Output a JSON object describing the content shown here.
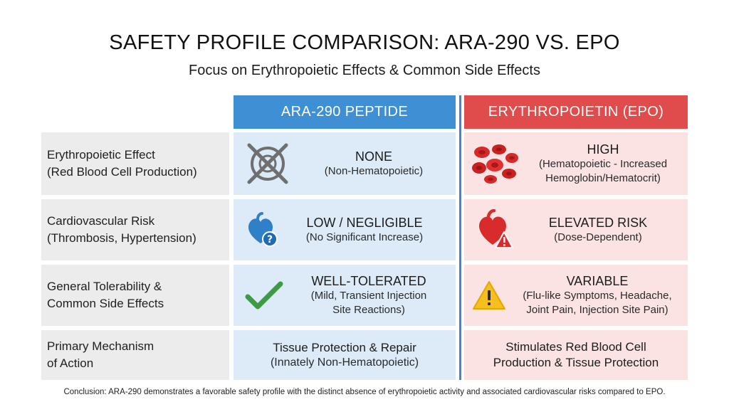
{
  "title": "SAFETY PROFILE COMPARISON: ARA-290 VS. EPO",
  "subtitle": "Focus on Erythropoietic Effects & Common Side Effects",
  "columns": {
    "ara": "ARA-290 PEPTIDE",
    "epo": "ERYTHROPOIETIN (EPO)"
  },
  "colors": {
    "ara_header": "#3f8fd4",
    "epo_header": "#e04b4b",
    "ara_cell": "#dcebf7",
    "epo_cell": "#fbe3e3",
    "label_cell": "#ececec"
  },
  "rows": [
    {
      "label": [
        "Erythropoietic Effect",
        "(Red Blood Cell Production)"
      ],
      "ara": {
        "icon": "crossed-out-cell-icon",
        "main": "NONE",
        "sub": [
          "(Non-Hematopoietic)"
        ]
      },
      "epo": {
        "icon": "red-blood-cells-icon",
        "main": "HIGH",
        "sub": [
          "(Hematopoietic - Increased",
          "Hemoglobin/Hematocrit)"
        ]
      }
    },
    {
      "label": [
        "Cardiovascular Risk",
        "(Thrombosis, Hypertension)"
      ],
      "ara": {
        "icon": "blue-heart-question-icon",
        "main": "LOW / NEGLIGIBLE",
        "sub": [
          "(No Significant Increase)"
        ]
      },
      "epo": {
        "icon": "red-heart-warning-icon",
        "main": "ELEVATED RISK",
        "sub": [
          "(Dose-Dependent)"
        ]
      }
    },
    {
      "label": [
        "General Tolerability &",
        "Common Side Effects"
      ],
      "ara": {
        "icon": "green-checkmark-icon",
        "main": "WELL-TOLERATED",
        "sub": [
          "(Mild, Transient Injection",
          "Site Reactions)"
        ]
      },
      "epo": {
        "icon": "warning-triangle-icon",
        "main": "VARIABLE",
        "sub": [
          "(Flu-like Symptoms, Headache,",
          "Joint Pain, Injection Site Pain)"
        ]
      }
    },
    {
      "label": [
        "Primary Mechanism",
        "of Action"
      ],
      "ara": {
        "lines": [
          "Tissue Protection & Repair",
          "(Innately Non-Hematopoietic)"
        ]
      },
      "epo": {
        "lines": [
          "Stimulates Red Blood Cell",
          "Production & Tissue Protection"
        ]
      }
    }
  ],
  "footnote": "Conclusion: ARA-290 demonstrates a favorable safety profile with the distinct absence of erythropoietic activity and associated cardiovascular risks compared to EPO."
}
